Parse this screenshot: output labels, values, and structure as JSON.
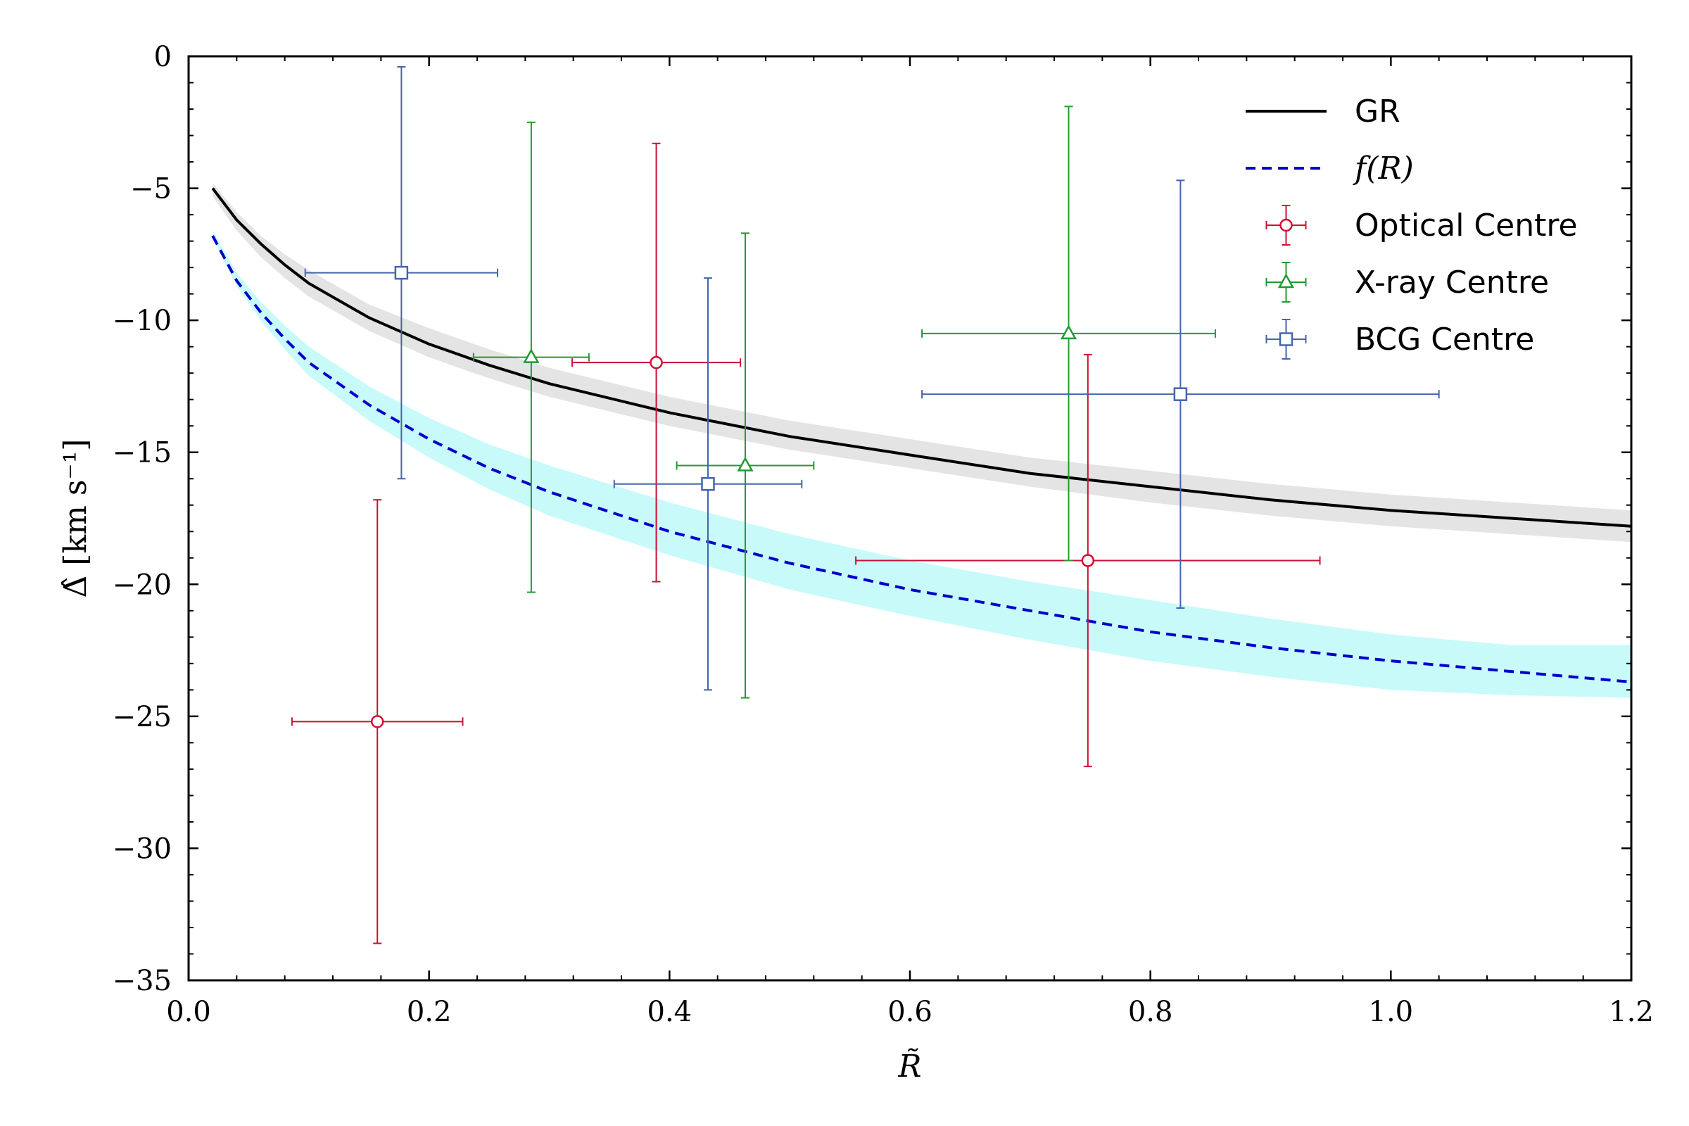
{
  "chart_data": {
    "type": "scatter",
    "xlabel": "R̃",
    "ylabel": "Δ̂ [km s⁻¹]",
    "xlim": [
      0.0,
      1.2
    ],
    "ylim": [
      -35,
      0
    ],
    "xticks": [
      0.0,
      0.2,
      0.4,
      0.6,
      0.8,
      1.0,
      1.2
    ],
    "xtick_labels": [
      "0.0",
      "0.2",
      "0.4",
      "0.6",
      "0.8",
      "1.0",
      "1.2"
    ],
    "yticks": [
      0,
      -5,
      -10,
      -15,
      -20,
      -25,
      -30,
      -35
    ],
    "ytick_labels": [
      "0",
      "−5",
      "−10",
      "−15",
      "−20",
      "−25",
      "−30",
      "−35"
    ],
    "grid": false,
    "legend_position": "top-right",
    "curves": [
      {
        "name": "GR",
        "style": "solid",
        "color": "#000000",
        "band_color": "#e4e4e4",
        "x": [
          0.02,
          0.04,
          0.06,
          0.08,
          0.1,
          0.15,
          0.2,
          0.25,
          0.3,
          0.4,
          0.5,
          0.6,
          0.7,
          0.8,
          0.9,
          1.0,
          1.1,
          1.2
        ],
        "y": [
          -5.0,
          -6.2,
          -7.1,
          -7.9,
          -8.6,
          -9.9,
          -10.9,
          -11.7,
          -12.4,
          -13.5,
          -14.4,
          -15.1,
          -15.8,
          -16.3,
          -16.8,
          -17.2,
          -17.5,
          -17.8
        ],
        "band_low": [
          -5.3,
          -6.6,
          -7.6,
          -8.4,
          -9.1,
          -10.4,
          -11.4,
          -12.2,
          -12.9,
          -14.0,
          -14.9,
          -15.6,
          -16.3,
          -16.9,
          -17.4,
          -17.8,
          -18.1,
          -18.4
        ],
        "band_high": [
          -4.8,
          -5.9,
          -6.8,
          -7.5,
          -8.1,
          -9.4,
          -10.3,
          -11.1,
          -11.8,
          -12.9,
          -13.8,
          -14.5,
          -15.2,
          -15.7,
          -16.2,
          -16.6,
          -16.9,
          -17.2
        ]
      },
      {
        "name": "f(R)",
        "style": "dashed",
        "color": "#0000cc",
        "band_color": "#c8fafa",
        "x": [
          0.02,
          0.04,
          0.06,
          0.08,
          0.1,
          0.15,
          0.2,
          0.25,
          0.3,
          0.4,
          0.5,
          0.6,
          0.7,
          0.8,
          0.9,
          1.0,
          1.1,
          1.2
        ],
        "y": [
          -6.8,
          -8.5,
          -9.7,
          -10.7,
          -11.6,
          -13.2,
          -14.5,
          -15.6,
          -16.5,
          -18.0,
          -19.2,
          -20.2,
          -21.0,
          -21.8,
          -22.4,
          -22.9,
          -23.3,
          -23.7
        ],
        "band_low": [
          -6.9,
          -8.7,
          -10.0,
          -11.1,
          -12.1,
          -13.8,
          -15.2,
          -16.4,
          -17.4,
          -18.9,
          -20.2,
          -21.2,
          -22.1,
          -22.9,
          -23.5,
          -24.0,
          -24.2,
          -24.3
        ],
        "band_high": [
          -6.6,
          -8.2,
          -9.3,
          -10.2,
          -11.0,
          -12.5,
          -13.7,
          -14.7,
          -15.5,
          -16.9,
          -18.1,
          -19.1,
          -19.9,
          -20.6,
          -21.3,
          -21.9,
          -22.3,
          -22.3
        ]
      }
    ],
    "series": [
      {
        "name": "Optical Centre",
        "marker": "circle",
        "color": "#cc1133",
        "points": [
          {
            "x": 0.157,
            "y": -25.2,
            "xerr": 0.071,
            "yerr_low": 8.4,
            "yerr_high": 8.4
          },
          {
            "x": 0.389,
            "y": -11.6,
            "xerr": 0.07,
            "yerr_low": 8.3,
            "yerr_high": 8.3
          },
          {
            "x": 0.748,
            "y": -19.1,
            "xerr": 0.193,
            "yerr_low": 7.8,
            "yerr_high": 7.8
          }
        ]
      },
      {
        "name": "X-ray Centre",
        "marker": "triangle",
        "color": "#229933",
        "points": [
          {
            "x": 0.285,
            "y": -11.4,
            "xerr": 0.048,
            "yerr_low": 8.9,
            "yerr_high": 8.9
          },
          {
            "x": 0.463,
            "y": -15.5,
            "xerr": 0.057,
            "yerr_low": 8.8,
            "yerr_high": 8.8
          },
          {
            "x": 0.732,
            "y": -10.5,
            "xerr": 0.122,
            "yerr_low": 8.6,
            "yerr_high": 8.6
          }
        ]
      },
      {
        "name": "BCG Centre",
        "marker": "square",
        "color": "#4466aa",
        "points": [
          {
            "x": 0.177,
            "y": -8.2,
            "xerr": 0.08,
            "yerr_low": 7.8,
            "yerr_high": 7.8
          },
          {
            "x": 0.432,
            "y": -16.2,
            "xerr": 0.078,
            "yerr_low": 7.8,
            "yerr_high": 7.8
          },
          {
            "x": 0.825,
            "y": -12.8,
            "xerr": 0.215,
            "yerr_low": 8.1,
            "yerr_high": 8.1
          }
        ]
      }
    ]
  }
}
